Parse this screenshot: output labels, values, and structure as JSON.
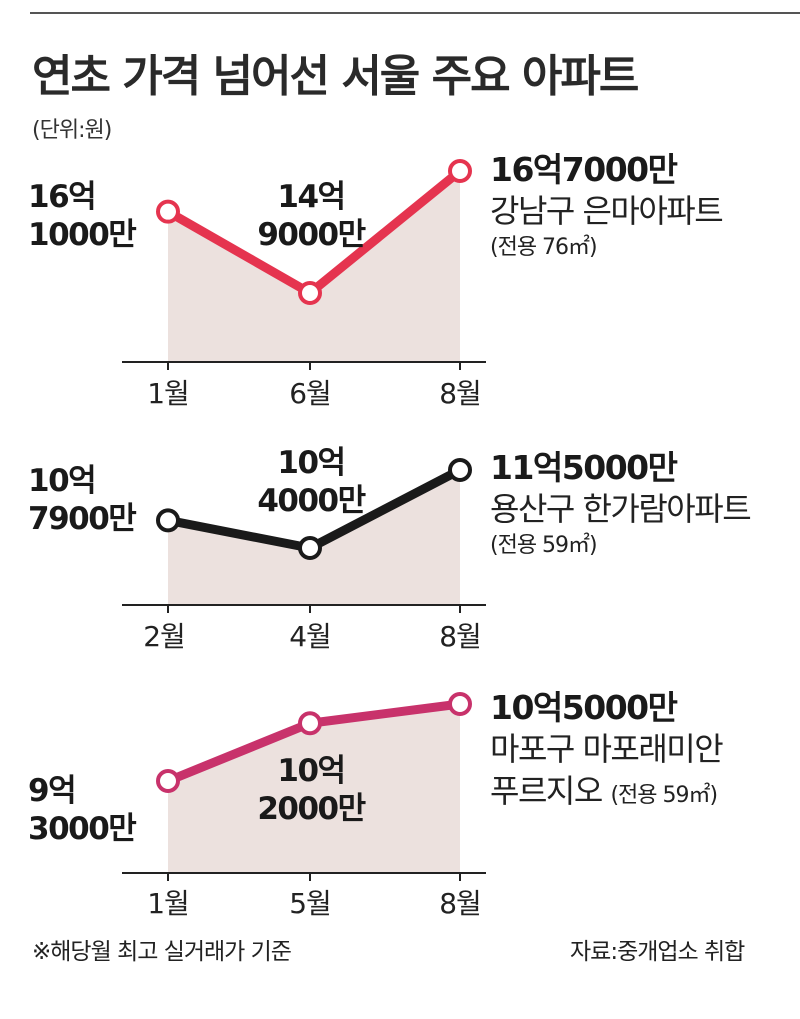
{
  "title": "연초 가격 넘어선 서울 주요 아파트",
  "unit_label": "(단위:원)",
  "footnote": "※해당월 최고 실거래가 기준",
  "source": "자료:중개업소 취합",
  "colors": {
    "apt1": "#e5344f",
    "apt2": "#1a1a1a",
    "apt3": "#c8326b",
    "fill": "#ece1de"
  },
  "chart_data": [
    {
      "type": "line",
      "name": "강남구 은마아파트",
      "area": "(전용 76㎡)",
      "x": [
        "1월",
        "6월",
        "8월"
      ],
      "values": [
        161000,
        149000,
        167000
      ],
      "value_labels": [
        [
          "16억",
          "1000만"
        ],
        [
          "14억",
          "9000만"
        ],
        [
          "16억7000만"
        ]
      ]
    },
    {
      "type": "line",
      "name": "용산구 한가람아파트",
      "area": "(전용 59㎡)",
      "x": [
        "2월",
        "4월",
        "8월"
      ],
      "values": [
        107900,
        104000,
        115000
      ],
      "value_labels": [
        [
          "10억",
          "7900만"
        ],
        [
          "10억",
          "4000만"
        ],
        [
          "11억5000만"
        ]
      ]
    },
    {
      "type": "line",
      "name_lines": [
        "마포구 마포래미안",
        "푸르지오"
      ],
      "area": "(전용 59㎡)",
      "x": [
        "1월",
        "5월",
        "8월"
      ],
      "values": [
        93000,
        102000,
        105000
      ],
      "value_labels": [
        [
          "9억",
          "3000만"
        ],
        [
          "10억",
          "2000만"
        ],
        [
          "10억5000만"
        ]
      ]
    }
  ]
}
